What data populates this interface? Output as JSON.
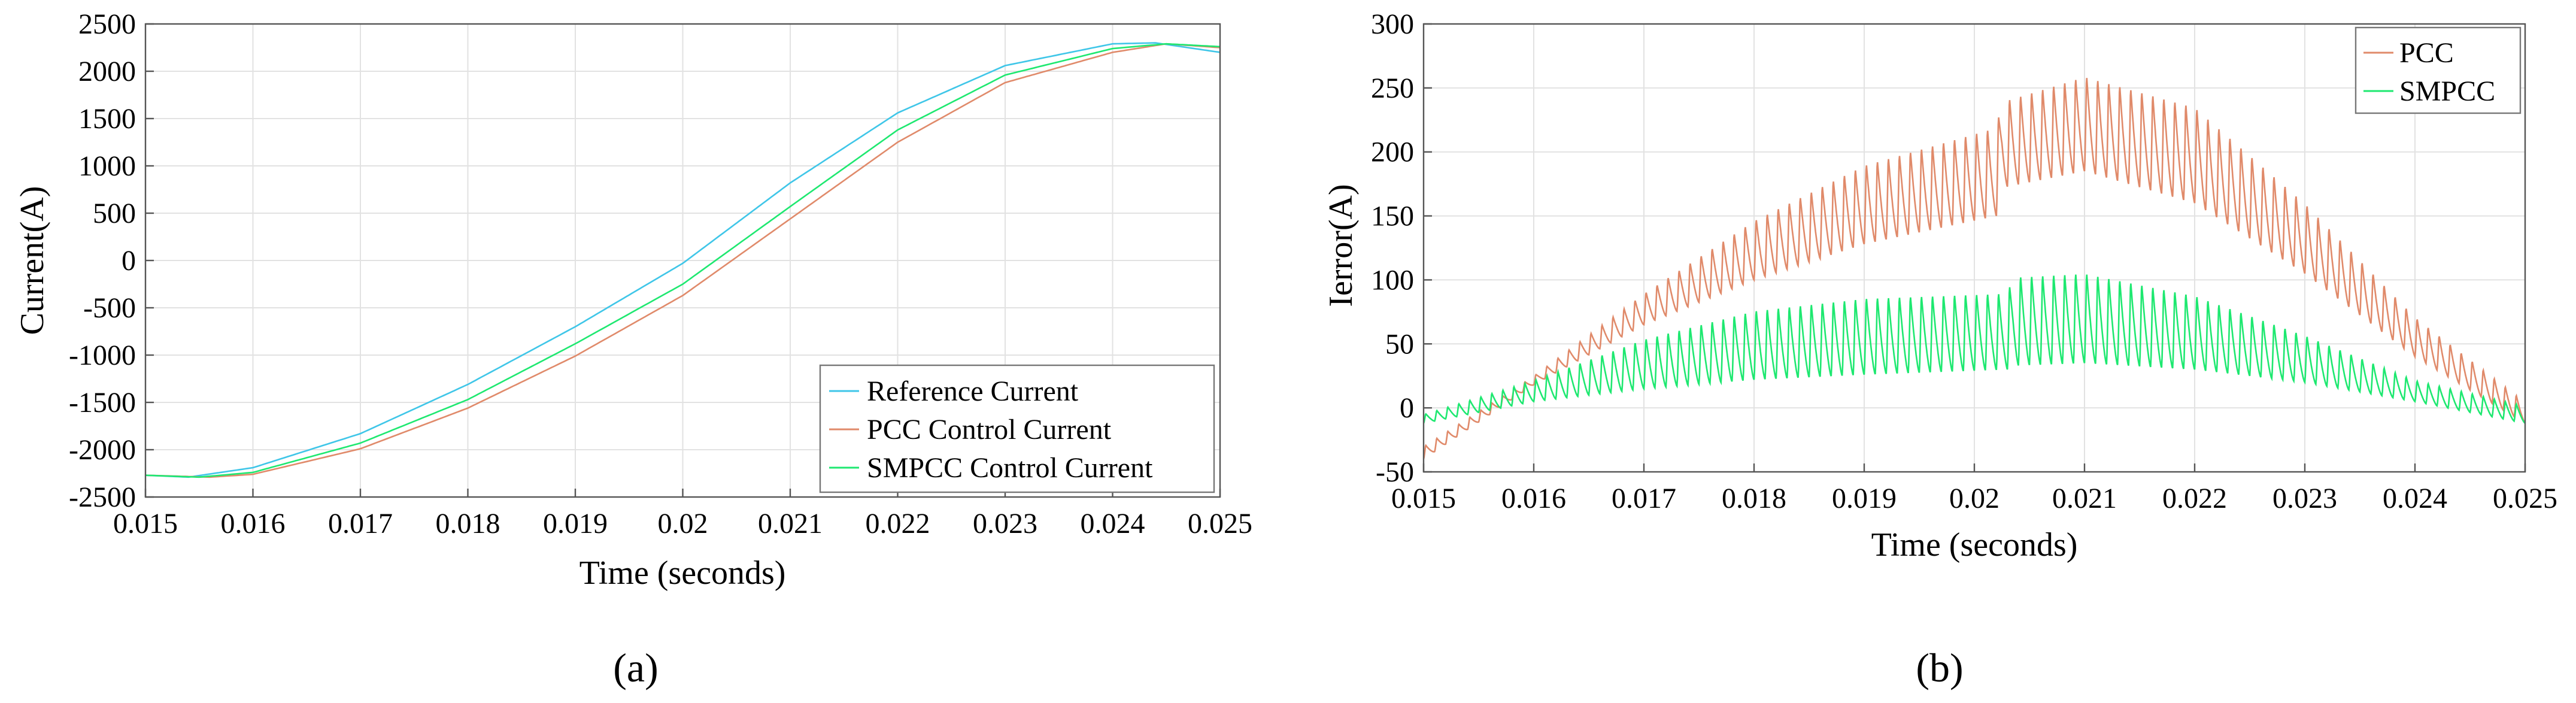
{
  "chart_data": [
    {
      "type": "line",
      "panel_label": "(a)",
      "xlabel": "Time (seconds)",
      "ylabel": "Current(A)",
      "xlim": [
        0.015,
        0.025
      ],
      "ylim": [
        -2500,
        2500
      ],
      "xticks": [
        0.015,
        0.016,
        0.017,
        0.018,
        0.019,
        0.02,
        0.021,
        0.022,
        0.023,
        0.024,
        0.025
      ],
      "xtick_labels": [
        "0.015",
        "0.016",
        "0.017",
        "0.018",
        "0.019",
        "0.02",
        "0.021",
        "0.022",
        "0.023",
        "0.024",
        "0.025"
      ],
      "yticks": [
        -2500,
        -2000,
        -1500,
        -1000,
        -500,
        0,
        500,
        1000,
        1500,
        2000,
        2500
      ],
      "ytick_labels": [
        "-2500",
        "-2000",
        "-1500",
        "-1000",
        "-500",
        "0",
        "500",
        "1000",
        "1500",
        "2000",
        "2500"
      ],
      "grid": true,
      "legend_position": "bottom-right",
      "series": [
        {
          "name": "Reference Current",
          "color": "#3fc6e8",
          "x": [
            0.015,
            0.0154,
            0.016,
            0.017,
            0.018,
            0.019,
            0.02,
            0.021,
            0.022,
            0.023,
            0.024,
            0.0244,
            0.025
          ],
          "y": [
            -2270,
            -2290,
            -2190,
            -1830,
            -1310,
            -700,
            -30,
            820,
            1560,
            2060,
            2290,
            2300,
            2200
          ]
        },
        {
          "name": "PCC Control Current",
          "color": "#e08a6a",
          "x": [
            0.015,
            0.0156,
            0.016,
            0.017,
            0.018,
            0.019,
            0.02,
            0.021,
            0.022,
            0.023,
            0.024,
            0.0245,
            0.025
          ],
          "y": [
            -2270,
            -2290,
            -2260,
            -1990,
            -1560,
            -1010,
            -370,
            440,
            1250,
            1880,
            2200,
            2290,
            2250
          ]
        },
        {
          "name": "SMPCC Control Current",
          "color": "#1ee870",
          "x": [
            0.015,
            0.0155,
            0.016,
            0.017,
            0.018,
            0.019,
            0.02,
            0.021,
            0.022,
            0.023,
            0.024,
            0.0245,
            0.025
          ],
          "y": [
            -2270,
            -2290,
            -2240,
            -1930,
            -1470,
            -880,
            -250,
            570,
            1380,
            1960,
            2240,
            2290,
            2260
          ]
        }
      ]
    },
    {
      "type": "line",
      "panel_label": "(b)",
      "xlabel": "Time (seconds)",
      "ylabel": "Ierror(A)",
      "xlim": [
        0.015,
        0.025
      ],
      "ylim": [
        -50,
        300
      ],
      "xticks": [
        0.015,
        0.016,
        0.017,
        0.018,
        0.019,
        0.02,
        0.021,
        0.022,
        0.023,
        0.024,
        0.025
      ],
      "xtick_labels": [
        "0.015",
        "0.016",
        "0.017",
        "0.018",
        "0.019",
        "0.02",
        "0.021",
        "0.022",
        "0.023",
        "0.024",
        "0.025"
      ],
      "yticks": [
        -50,
        0,
        50,
        100,
        150,
        200,
        250,
        300
      ],
      "ytick_labels": [
        "-50",
        "0",
        "50",
        "100",
        "150",
        "200",
        "250",
        "300"
      ],
      "grid": true,
      "legend_position": "top-right",
      "ripple_period": 0.0001,
      "series": [
        {
          "name": "PCC",
          "color": "#e08a6a",
          "envelope_x": [
            0.015,
            0.016,
            0.017,
            0.018,
            0.019,
            0.0202,
            0.02025,
            0.021,
            0.022,
            0.023,
            0.024,
            0.025
          ],
          "upper": [
            -30,
            25,
            90,
            148,
            192,
            222,
            242,
            262,
            238,
            162,
            72,
            5
          ],
          "lower": [
            -40,
            18,
            65,
            100,
            128,
            150,
            172,
            185,
            160,
            105,
            40,
            -12
          ]
        },
        {
          "name": "SMPCC",
          "color": "#1ee870",
          "envelope_x": [
            0.015,
            0.016,
            0.017,
            0.018,
            0.019,
            0.0203,
            0.02035,
            0.021,
            0.022,
            0.023,
            0.024,
            0.025
          ],
          "upper": [
            -5,
            22,
            55,
            78,
            88,
            92,
            105,
            108,
            90,
            58,
            22,
            2
          ],
          "lower": [
            -12,
            5,
            15,
            22,
            26,
            30,
            33,
            35,
            30,
            20,
            5,
            -12
          ]
        }
      ]
    }
  ]
}
